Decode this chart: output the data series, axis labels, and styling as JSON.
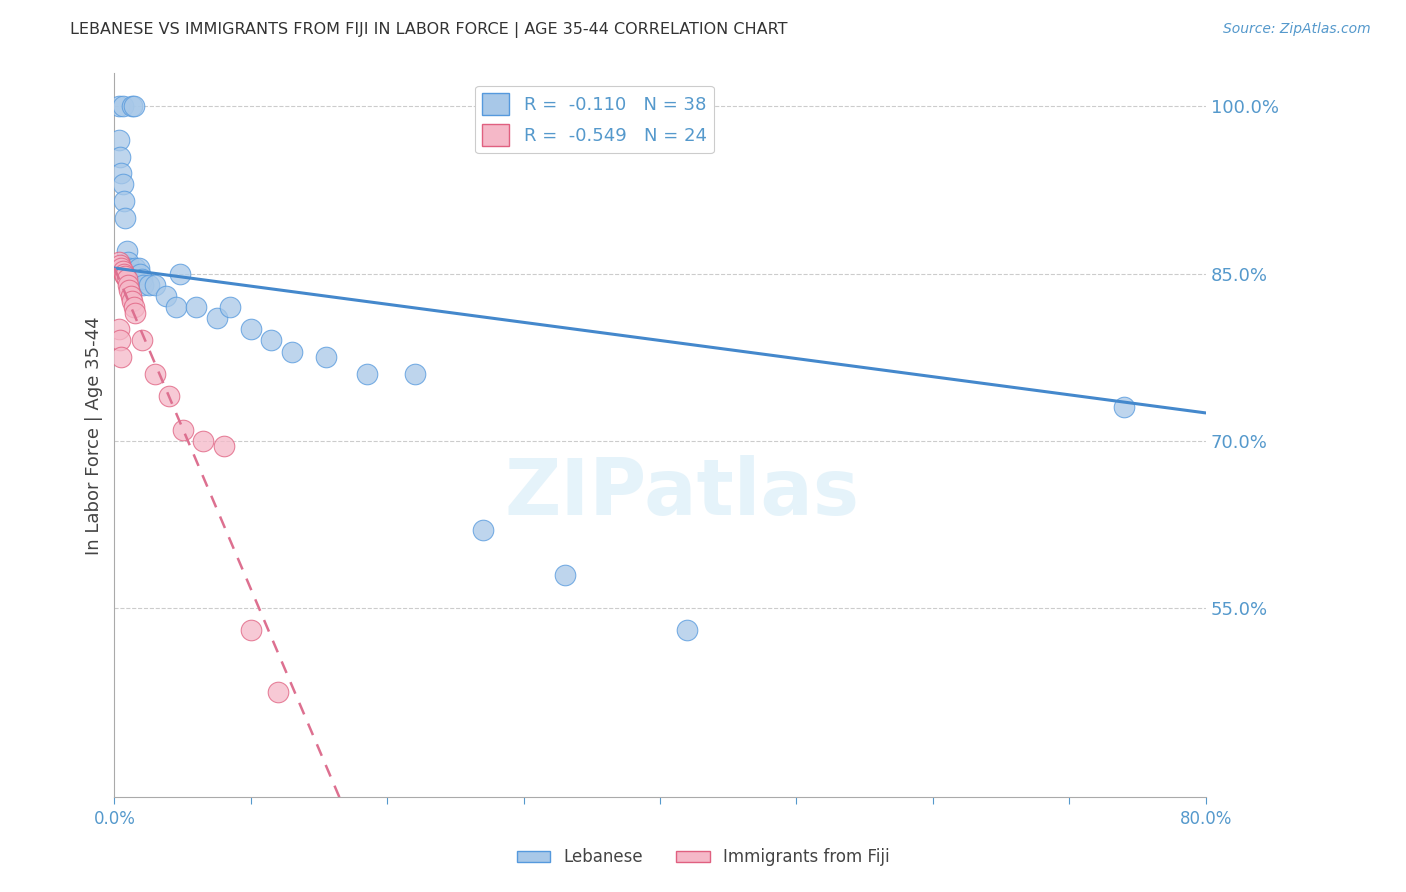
{
  "title": "LEBANESE VS IMMIGRANTS FROM FIJI IN LABOR FORCE | AGE 35-44 CORRELATION CHART",
  "source": "Source: ZipAtlas.com",
  "ylabel": "In Labor Force | Age 35-44",
  "watermark": "ZIPatlas",
  "xlim": [
    0.0,
    0.8
  ],
  "ylim": [
    0.38,
    1.03
  ],
  "xtick_vals": [
    0.0,
    0.1,
    0.2,
    0.3,
    0.4,
    0.5,
    0.6,
    0.7,
    0.8
  ],
  "xticklabels": [
    "0.0%",
    "",
    "",
    "",
    "",
    "",
    "",
    "",
    "80.0%"
  ],
  "yticks_right": [
    0.55,
    0.7,
    0.85,
    1.0
  ],
  "ytick_right_labels": [
    "55.0%",
    "70.0%",
    "85.0%",
    "100.0%"
  ],
  "legend_blue_r": "-0.110",
  "legend_blue_n": "38",
  "legend_pink_r": "-0.549",
  "legend_pink_n": "24",
  "blue_marker_color": "#a8c8e8",
  "blue_edge_color": "#5599dd",
  "pink_marker_color": "#f5b8c8",
  "pink_edge_color": "#e06080",
  "blue_line_color": "#4488cc",
  "pink_line_color": "#dd7090",
  "axis_color": "#5599cc",
  "grid_color": "#cccccc",
  "title_color": "#333333",
  "blue_scatter_x": [
    0.003,
    0.006,
    0.013,
    0.014,
    0.003,
    0.004,
    0.005,
    0.006,
    0.007,
    0.008,
    0.009,
    0.01,
    0.011,
    0.012,
    0.013,
    0.015,
    0.018,
    0.019,
    0.02,
    0.021,
    0.025,
    0.03,
    0.038,
    0.045,
    0.048,
    0.06,
    0.075,
    0.085,
    0.1,
    0.115,
    0.13,
    0.155,
    0.185,
    0.22,
    0.27,
    0.33,
    0.42,
    0.74
  ],
  "blue_scatter_y": [
    1.0,
    1.0,
    1.0,
    1.0,
    0.97,
    0.955,
    0.94,
    0.93,
    0.915,
    0.9,
    0.87,
    0.86,
    0.855,
    0.85,
    0.85,
    0.855,
    0.855,
    0.85,
    0.845,
    0.84,
    0.84,
    0.84,
    0.83,
    0.82,
    0.85,
    0.82,
    0.81,
    0.82,
    0.8,
    0.79,
    0.78,
    0.775,
    0.76,
    0.76,
    0.62,
    0.58,
    0.53,
    0.73
  ],
  "pink_scatter_x": [
    0.003,
    0.004,
    0.005,
    0.006,
    0.007,
    0.008,
    0.009,
    0.01,
    0.011,
    0.012,
    0.013,
    0.014,
    0.015,
    0.003,
    0.004,
    0.005,
    0.02,
    0.03,
    0.04,
    0.05,
    0.065,
    0.08,
    0.1,
    0.12
  ],
  "pink_scatter_y": [
    0.86,
    0.858,
    0.855,
    0.852,
    0.85,
    0.848,
    0.845,
    0.84,
    0.835,
    0.83,
    0.825,
    0.82,
    0.815,
    0.8,
    0.79,
    0.775,
    0.79,
    0.76,
    0.74,
    0.71,
    0.7,
    0.695,
    0.53,
    0.475
  ],
  "blue_trend_x": [
    0.0,
    0.8
  ],
  "blue_trend_y": [
    0.855,
    0.725
  ],
  "pink_trend_x": [
    0.0,
    0.165
  ],
  "pink_trend_y": [
    0.855,
    0.38
  ]
}
